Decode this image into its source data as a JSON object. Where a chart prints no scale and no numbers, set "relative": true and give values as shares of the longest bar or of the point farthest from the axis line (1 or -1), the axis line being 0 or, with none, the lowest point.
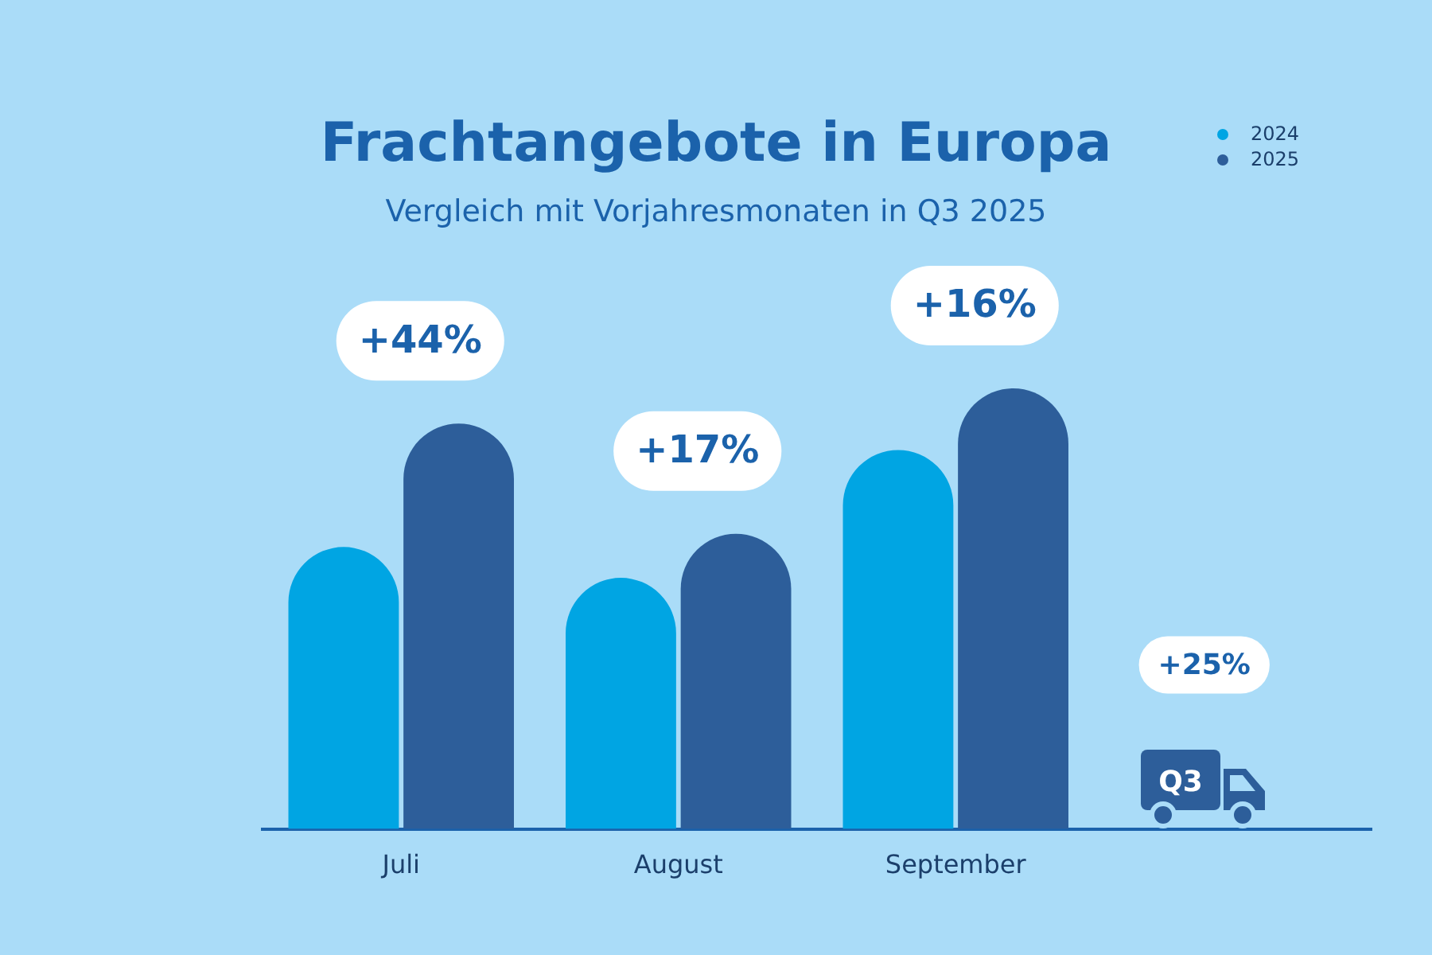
{
  "chart_data": {
    "type": "bar",
    "title": "Frachtangebote in Europa",
    "subtitle": "Vergleich mit Vorjahresmonaten in Q3 2025",
    "relative": true,
    "legend": "top right",
    "categories": [
      "Juli",
      "August",
      "September",
      null
    ],
    "series": [
      {
        "name": "2024",
        "color": "#00a5e3",
        "values": [
          0.64,
          0.57,
          0.86,
          null
        ]
      },
      {
        "name": "2025",
        "color": "#2d5e9a",
        "values": [
          0.92,
          0.67,
          1.0,
          null
        ]
      }
    ],
    "annotations": [
      "+44%",
      "+17%",
      "+16%",
      "+25%",
      "Q3"
    ]
  }
}
